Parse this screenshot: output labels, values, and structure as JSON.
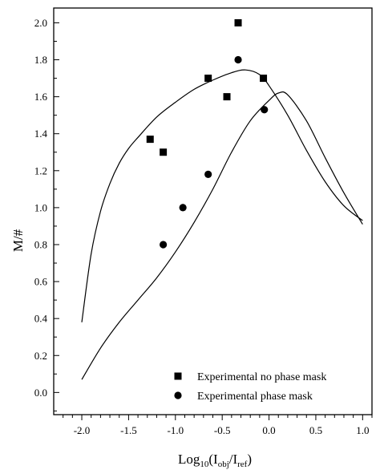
{
  "chart_data": {
    "type": "scatter",
    "title": "",
    "ylabel": "M/#",
    "xlabel": "Log10(Iobj/Iref)",
    "xlabel_parts": {
      "main": "Log",
      "main_sub": "10",
      "open": "(I",
      "num_sub": "obj",
      "slash": "/I",
      "den_sub": "ref",
      "close": ")"
    },
    "xlim": [
      -2.3,
      1.1
    ],
    "ylim": [
      -0.12,
      2.08
    ],
    "x_ticks": [
      -2.0,
      -1.5,
      -1.0,
      -0.5,
      0.0,
      0.5,
      1.0
    ],
    "x_tick_labels": [
      "-2.0",
      "-1.5",
      "-1.0",
      "-0.5",
      "0.0",
      "0.5",
      "1.0"
    ],
    "y_ticks": [
      0.0,
      0.2,
      0.4,
      0.6,
      0.8,
      1.0,
      1.2,
      1.4,
      1.6,
      1.8,
      2.0
    ],
    "y_tick_labels": [
      "0.0",
      "0.2",
      "0.4",
      "0.6",
      "0.8",
      "1.0",
      "1.2",
      "1.4",
      "1.6",
      "1.8",
      "2.0"
    ],
    "grid": false,
    "legend_position": "bottom-right",
    "series": [
      {
        "name": "Experimental no phase mask",
        "marker": "square",
        "color": "#000000",
        "points": [
          [
            -1.27,
            1.37
          ],
          [
            -1.13,
            1.3
          ],
          [
            -0.65,
            1.7
          ],
          [
            -0.45,
            1.6
          ],
          [
            -0.33,
            2.0
          ],
          [
            -0.06,
            1.7
          ]
        ]
      },
      {
        "name": "Experimental phase mask",
        "marker": "circle",
        "color": "#000000",
        "points": [
          [
            -1.13,
            0.8
          ],
          [
            -0.92,
            1.0
          ],
          [
            -0.65,
            1.18
          ],
          [
            -0.33,
            1.8
          ],
          [
            -0.05,
            1.53
          ]
        ]
      }
    ],
    "fit_curves": [
      {
        "style": "solid",
        "color": "#000000",
        "points": [
          [
            -2.0,
            0.38
          ],
          [
            -1.9,
            0.75
          ],
          [
            -1.8,
            0.98
          ],
          [
            -1.7,
            1.13
          ],
          [
            -1.6,
            1.24
          ],
          [
            -1.5,
            1.32
          ],
          [
            -1.4,
            1.38
          ],
          [
            -1.2,
            1.49
          ],
          [
            -1.0,
            1.57
          ],
          [
            -0.8,
            1.64
          ],
          [
            -0.6,
            1.69
          ],
          [
            -0.4,
            1.73
          ],
          [
            -0.25,
            1.745
          ],
          [
            -0.1,
            1.72
          ],
          [
            0.0,
            1.66
          ],
          [
            0.2,
            1.5
          ],
          [
            0.4,
            1.31
          ],
          [
            0.6,
            1.14
          ],
          [
            0.8,
            1.01
          ],
          [
            1.0,
            0.93
          ]
        ]
      },
      {
        "style": "solid",
        "color": "#000000",
        "points": [
          [
            -2.0,
            0.07
          ],
          [
            -1.8,
            0.24
          ],
          [
            -1.6,
            0.38
          ],
          [
            -1.4,
            0.5
          ],
          [
            -1.2,
            0.62
          ],
          [
            -1.0,
            0.76
          ],
          [
            -0.8,
            0.92
          ],
          [
            -0.6,
            1.1
          ],
          [
            -0.4,
            1.3
          ],
          [
            -0.2,
            1.47
          ],
          [
            0.0,
            1.58
          ],
          [
            0.1,
            1.62
          ],
          [
            0.2,
            1.61
          ],
          [
            0.4,
            1.47
          ],
          [
            0.6,
            1.27
          ],
          [
            0.8,
            1.08
          ],
          [
            1.0,
            0.91
          ]
        ]
      }
    ]
  }
}
